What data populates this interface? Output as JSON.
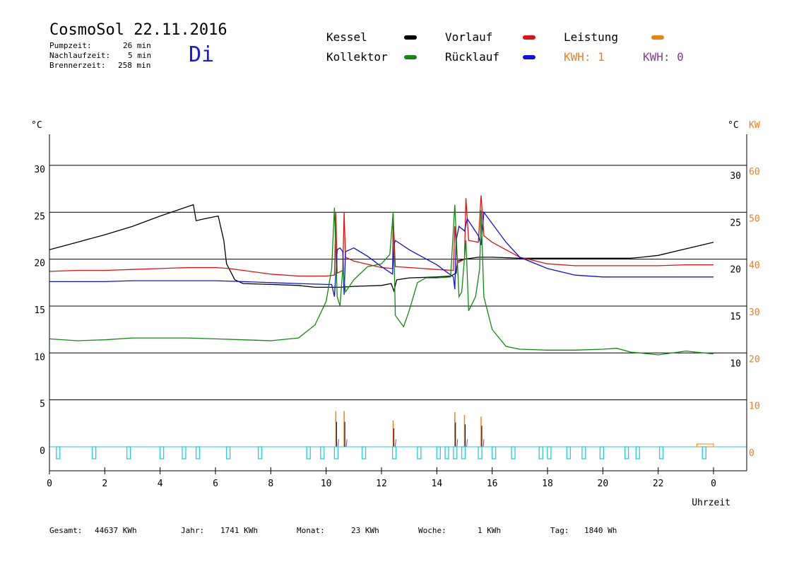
{
  "header": {
    "title": "CosmoSol 22.11.2016",
    "day": "Di",
    "stats": [
      {
        "label": "Pumpzeit:",
        "value": "26 min"
      },
      {
        "label": "Nachlaufzeit:",
        "value": "5 min"
      },
      {
        "label": "Brennerzeit:",
        "value": "258 min"
      }
    ]
  },
  "legend": {
    "kessel": "Kessel",
    "kollektor": "Kollektor",
    "vorlauf": "Vorlauf",
    "ruecklauf": "Rücklauf",
    "leistung": "Leistung",
    "kwh1": "KWH: 1",
    "kwh2": "KWH: 0"
  },
  "colors": {
    "kessel": "#000000",
    "kollektor": "#0f8a0f",
    "vorlauf": "#e01010",
    "ruecklauf": "#1010e0",
    "leistung": "#f08010",
    "kwh2": "#8a3a9a",
    "pump": "#20d0d8"
  },
  "footer": {
    "gesamt_label": "Gesamt:",
    "gesamt_value": "44637 KWh",
    "jahr_label": "Jahr:",
    "jahr_value": "1741 KWh",
    "monat_label": "Monat:",
    "monat_value": "23 KWh",
    "woche_label": "Woche:",
    "woche_value": "1 KWh",
    "tag_label": "Tag:",
    "tag_value": "1840 Wh"
  },
  "chart_data": {
    "type": "line",
    "xlabel": "Uhrzeit",
    "ylabel_left": "°C",
    "ylabel_right": "°C",
    "ylabel_right2": "KW",
    "x_ticks": [
      "0",
      "2",
      "4",
      "6",
      "8",
      "10",
      "12",
      "14",
      "16",
      "18",
      "20",
      "22",
      "0"
    ],
    "xlim": [
      0,
      24
    ],
    "y_left_ticks": [
      0,
      5,
      10,
      15,
      20,
      25,
      30
    ],
    "y_right_ticks": [
      10,
      15,
      20,
      25,
      30
    ],
    "y_right2_ticks": [
      0,
      10,
      20,
      30,
      40,
      50,
      60
    ],
    "ylim": [
      -2.5,
      33
    ],
    "grid_y": [
      5,
      10,
      15,
      20,
      25,
      30
    ],
    "series": [
      {
        "name": "Kessel",
        "key": "kessel",
        "points": [
          [
            0,
            21
          ],
          [
            1,
            21.8
          ],
          [
            2,
            22.6
          ],
          [
            3,
            23.5
          ],
          [
            4,
            24.6
          ],
          [
            5,
            25.6
          ],
          [
            5.2,
            25.8
          ],
          [
            5.3,
            24.1
          ],
          [
            5.6,
            24.3
          ],
          [
            6.1,
            24.6
          ],
          [
            6.3,
            22
          ],
          [
            6.4,
            19.5
          ],
          [
            6.7,
            17.8
          ],
          [
            7,
            17.4
          ],
          [
            8,
            17.3
          ],
          [
            9,
            17.2
          ],
          [
            9.6,
            17
          ],
          [
            10.5,
            17
          ],
          [
            11,
            17.1
          ],
          [
            12,
            17.2
          ],
          [
            12.35,
            17.4
          ],
          [
            12.45,
            16.6
          ],
          [
            12.55,
            17.8
          ],
          [
            13,
            18
          ],
          [
            14,
            18.1
          ],
          [
            14.5,
            18.2
          ],
          [
            14.7,
            18.5
          ],
          [
            14.75,
            19.8
          ],
          [
            15,
            20
          ],
          [
            15.5,
            20.2
          ],
          [
            16,
            20.2
          ],
          [
            17,
            20.1
          ],
          [
            19,
            20.1
          ],
          [
            20,
            20.1
          ],
          [
            21,
            20.1
          ],
          [
            21.4,
            20.2
          ],
          [
            22,
            20.4
          ],
          [
            23,
            21.1
          ],
          [
            24,
            21.8
          ]
        ]
      },
      {
        "name": "Vorlauf",
        "key": "vorlauf",
        "points": [
          [
            0,
            18.7
          ],
          [
            1,
            18.8
          ],
          [
            2,
            18.8
          ],
          [
            3,
            18.9
          ],
          [
            4,
            19
          ],
          [
            5,
            19.1
          ],
          [
            6,
            19.1
          ],
          [
            6.5,
            19
          ],
          [
            7,
            18.8
          ],
          [
            8,
            18.4
          ],
          [
            9,
            18.2
          ],
          [
            10,
            18.2
          ],
          [
            10.3,
            18.3
          ],
          [
            10.35,
            25
          ],
          [
            10.4,
            18.5
          ],
          [
            10.6,
            18.8
          ],
          [
            10.65,
            25
          ],
          [
            10.7,
            20.2
          ],
          [
            11,
            19.8
          ],
          [
            12,
            19.1
          ],
          [
            12.4,
            19
          ],
          [
            12.42,
            24.8
          ],
          [
            12.5,
            19.2
          ],
          [
            13,
            19.1
          ],
          [
            14,
            18.9
          ],
          [
            14.6,
            18.8
          ],
          [
            14.65,
            23.5
          ],
          [
            14.75,
            19.6
          ],
          [
            15,
            20
          ],
          [
            15.05,
            26.5
          ],
          [
            15.15,
            22
          ],
          [
            15.5,
            21.8
          ],
          [
            15.6,
            26.8
          ],
          [
            15.7,
            22.5
          ],
          [
            16,
            21.8
          ],
          [
            17,
            20.2
          ],
          [
            18,
            19.5
          ],
          [
            19,
            19.3
          ],
          [
            20,
            19.3
          ],
          [
            21,
            19.3
          ],
          [
            22,
            19.3
          ],
          [
            23,
            19.4
          ],
          [
            24,
            19.4
          ]
        ]
      },
      {
        "name": "Rücklauf",
        "key": "ruecklauf",
        "points": [
          [
            0,
            17.6
          ],
          [
            1,
            17.6
          ],
          [
            2,
            17.6
          ],
          [
            3,
            17.7
          ],
          [
            4,
            17.7
          ],
          [
            5,
            17.7
          ],
          [
            6,
            17.7
          ],
          [
            7,
            17.6
          ],
          [
            8,
            17.5
          ],
          [
            9,
            17.4
          ],
          [
            10,
            17.3
          ],
          [
            10.2,
            17.3
          ],
          [
            10.3,
            16
          ],
          [
            10.35,
            18.5
          ],
          [
            10.4,
            21
          ],
          [
            10.5,
            21.2
          ],
          [
            10.6,
            20.8
          ],
          [
            10.65,
            16.2
          ],
          [
            10.7,
            20.8
          ],
          [
            11,
            21.2
          ],
          [
            11.5,
            20.3
          ],
          [
            12,
            19.2
          ],
          [
            12.4,
            18.4
          ],
          [
            12.45,
            21.5
          ],
          [
            12.5,
            22
          ],
          [
            13,
            21
          ],
          [
            14,
            19.4
          ],
          [
            14.6,
            18.1
          ],
          [
            14.65,
            16.8
          ],
          [
            14.7,
            22
          ],
          [
            14.8,
            23.5
          ],
          [
            15,
            23
          ],
          [
            15.1,
            24.3
          ],
          [
            15.5,
            22.5
          ],
          [
            15.6,
            21.5
          ],
          [
            15.7,
            25
          ],
          [
            16,
            23.8
          ],
          [
            16.5,
            21.8
          ],
          [
            17,
            20.2
          ],
          [
            18,
            19
          ],
          [
            19,
            18.3
          ],
          [
            20,
            18.1
          ],
          [
            21,
            18.1
          ],
          [
            22,
            18.1
          ],
          [
            23,
            18.1
          ],
          [
            24,
            18.1
          ]
        ]
      },
      {
        "name": "Kollektor",
        "key": "kollektor",
        "points": [
          [
            0,
            11.5
          ],
          [
            1,
            11.3
          ],
          [
            2,
            11.4
          ],
          [
            3,
            11.6
          ],
          [
            4,
            11.6
          ],
          [
            5,
            11.6
          ],
          [
            6,
            11.5
          ],
          [
            7,
            11.4
          ],
          [
            8,
            11.3
          ],
          [
            9,
            11.6
          ],
          [
            9.6,
            13
          ],
          [
            10,
            15.5
          ],
          [
            10.2,
            19
          ],
          [
            10.3,
            25.5
          ],
          [
            10.4,
            16
          ],
          [
            10.5,
            15
          ],
          [
            10.6,
            19
          ],
          [
            10.7,
            16.5
          ],
          [
            11,
            17.8
          ],
          [
            11.5,
            19.2
          ],
          [
            12,
            19.5
          ],
          [
            12.3,
            20.5
          ],
          [
            12.42,
            25
          ],
          [
            12.5,
            14
          ],
          [
            12.8,
            12.8
          ],
          [
            13,
            14.5
          ],
          [
            13.3,
            17.5
          ],
          [
            13.6,
            18
          ],
          [
            14,
            18
          ],
          [
            14.5,
            18.1
          ],
          [
            14.65,
            25.8
          ],
          [
            14.8,
            16
          ],
          [
            14.9,
            16.5
          ],
          [
            15.05,
            22
          ],
          [
            15.15,
            14.5
          ],
          [
            15.4,
            16
          ],
          [
            15.55,
            19
          ],
          [
            15.6,
            25.2
          ],
          [
            15.7,
            16
          ],
          [
            16,
            12.5
          ],
          [
            16.5,
            10.7
          ],
          [
            17,
            10.4
          ],
          [
            18,
            10.3
          ],
          [
            19,
            10.3
          ],
          [
            20,
            10.4
          ],
          [
            20.5,
            10.5
          ],
          [
            21,
            10.1
          ],
          [
            22,
            9.8
          ],
          [
            23,
            10.2
          ],
          [
            24,
            9.9
          ]
        ]
      }
    ],
    "leistung_spikes": [
      [
        10.35,
        3.8
      ],
      [
        10.65,
        3.8
      ],
      [
        12.42,
        2.8
      ],
      [
        14.65,
        3.7
      ],
      [
        15.0,
        3.4
      ],
      [
        15.6,
        3.2
      ]
    ],
    "pump_pulses": [
      0.3,
      1.6,
      2.85,
      4.05,
      4.85,
      5.35,
      6.45,
      7.6,
      9.35,
      9.85,
      10.35,
      11.35,
      12.45,
      13.35,
      14.05,
      14.35,
      14.65,
      14.95,
      15.55,
      16.05,
      16.75,
      17.75,
      18.05,
      18.75,
      19.3,
      19.95,
      20.85,
      21.25,
      22.1,
      23.65
    ]
  }
}
